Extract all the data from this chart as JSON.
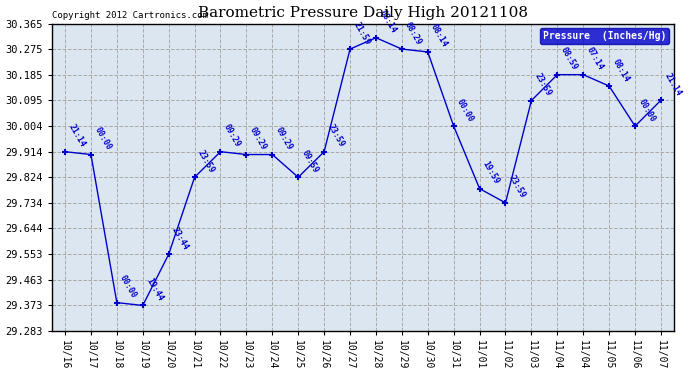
{
  "title": "Barometric Pressure Daily High 20121108",
  "copyright": "Copyright 2012 Cartronics.com",
  "legend_label": "Pressure  (Inches/Hg)",
  "background_color": "#ffffff",
  "plot_bg_color": "#dce6f0",
  "line_color": "#0000cc",
  "grid_color": "#aaaaaa",
  "x_labels": [
    "10/16",
    "10/17",
    "10/18",
    "10/19",
    "10/20",
    "10/21",
    "10/22",
    "10/23",
    "10/24",
    "10/25",
    "10/26",
    "10/27",
    "10/28",
    "10/29",
    "10/30",
    "10/31",
    "11/01",
    "11/02",
    "11/03",
    "11/04",
    "11/04",
    "11/05",
    "11/06",
    "11/07"
  ],
  "x_indices": [
    0,
    1,
    2,
    3,
    4,
    5,
    6,
    7,
    8,
    9,
    10,
    11,
    12,
    13,
    14,
    15,
    16,
    17,
    18,
    19,
    20,
    21,
    22,
    23
  ],
  "y_values": [
    29.914,
    29.904,
    29.383,
    29.373,
    29.553,
    29.824,
    29.914,
    29.904,
    29.904,
    29.824,
    29.914,
    30.275,
    30.315,
    30.275,
    30.265,
    30.004,
    29.784,
    29.734,
    30.094,
    30.185,
    30.185,
    30.145,
    30.004,
    30.095
  ],
  "point_labels": [
    "21:14",
    "00:00",
    "00:00",
    "19:44",
    "23:44",
    "23:59",
    "09:29",
    "09:29",
    "09:29",
    "09:59",
    "23:59",
    "21:59",
    "08:14",
    "08:29",
    "08:14",
    "00:00",
    "19:59",
    "23:59",
    "23:59",
    "08:59",
    "07:14",
    "08:14",
    "00:00",
    "21:14"
  ],
  "ylim": [
    29.283,
    30.365
  ],
  "yticks": [
    29.283,
    29.373,
    29.463,
    29.553,
    29.644,
    29.734,
    29.824,
    29.914,
    30.004,
    30.095,
    30.185,
    30.275,
    30.365
  ]
}
